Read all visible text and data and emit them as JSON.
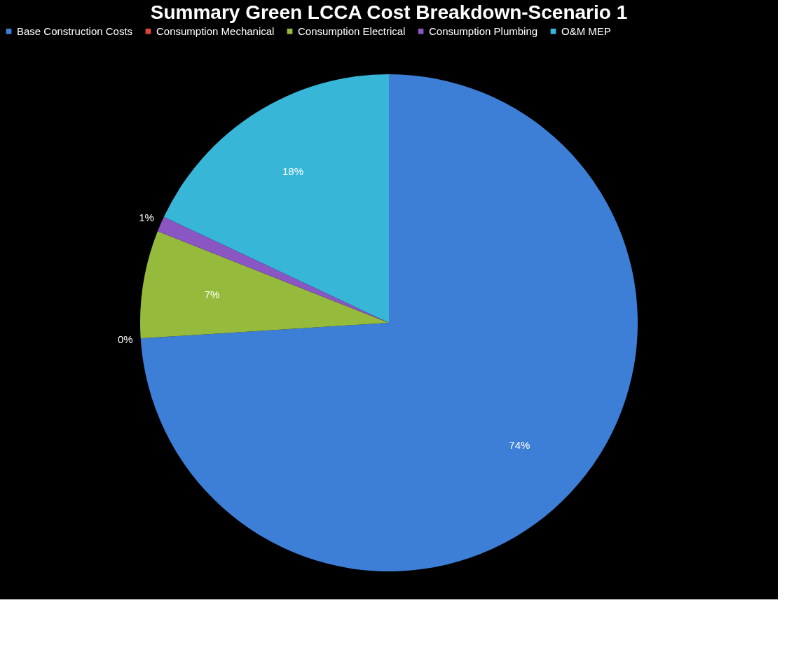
{
  "chart_data": {
    "type": "pie",
    "title": "Summary Green LCCA Cost Breakdown-Scenario 1",
    "categories": [
      "Base Construction Costs",
      "Consumption Mechanical",
      "Consumption Electrical",
      "Consumption Plumbing",
      "O&M MEP"
    ],
    "values": [
      74,
      0,
      7,
      1,
      18
    ],
    "value_labels": [
      "74%",
      "0%",
      "7%",
      "1%",
      "18%"
    ],
    "colors": [
      "#3d7fd6",
      "#d9463b",
      "#96bb3c",
      "#8a56c4",
      "#37b6d8"
    ],
    "legend": "top"
  }
}
